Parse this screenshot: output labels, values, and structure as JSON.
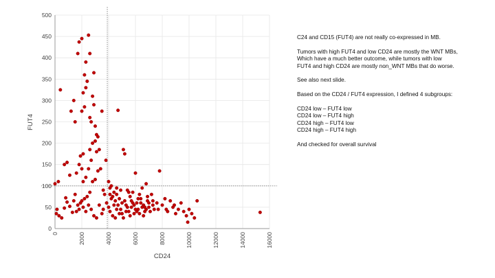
{
  "colors": {
    "point": "#c00000",
    "point_stroke": "#8a0000",
    "reference_line": "#808080",
    "grid": "#e6e6e6",
    "axis": "#9a9a9a"
  },
  "notes": {
    "para1": "C24 and CD15 (FUT4) are not really co-expressed in MB.",
    "para2": [
      "Tumors with high FUT4 and low CD24 are mostly the WNT MBs,",
      "Which have a much better outcome, while tumors with low",
      "FUT4 and high CD24 are mostly non_WNT MBs that do worse."
    ],
    "para3": "See also next slide.",
    "para4": "Based on the CD24 / FUT4 expression, I defined 4 subgroups:",
    "subgroups": [
      "CD24 low – FUT4 low",
      "CD24 low – FUT4 high",
      "CD24 high – FUT4 low",
      "CD24 high – FUT4 high"
    ],
    "para5": "And checked for overall survival"
  },
  "chart_data": {
    "type": "scatter",
    "title": "",
    "xlabel": "CD24",
    "ylabel": "FUT4",
    "xlim": [
      0,
      16000
    ],
    "ylim": [
      0,
      500
    ],
    "x_ticks": [
      "0",
      "2000",
      "4000",
      "6000",
      "8000",
      "10000",
      "12000",
      "14000",
      "16000"
    ],
    "y_ticks": [
      "0",
      "50",
      "100",
      "150",
      "200",
      "250",
      "300",
      "350",
      "400",
      "450",
      "500"
    ],
    "grid": true,
    "reference_lines": {
      "x": 3900,
      "y": 100
    },
    "series": [
      {
        "points": [
          [
            0,
            105
          ],
          [
            250,
            110
          ],
          [
            400,
            325
          ],
          [
            150,
            45
          ],
          [
            300,
            30
          ],
          [
            500,
            25
          ],
          [
            100,
            35
          ],
          [
            700,
            150
          ],
          [
            900,
            155
          ],
          [
            1100,
            125
          ],
          [
            1200,
            275
          ],
          [
            1400,
            300
          ],
          [
            1500,
            250
          ],
          [
            1700,
            410
          ],
          [
            1800,
            437
          ],
          [
            2000,
            445
          ],
          [
            2000,
            140
          ],
          [
            2100,
            175
          ],
          [
            2200,
            360
          ],
          [
            2300,
            390
          ],
          [
            2500,
            453
          ],
          [
            2600,
            410
          ],
          [
            2300,
            330
          ],
          [
            2100,
            318
          ],
          [
            2000,
            275
          ],
          [
            2200,
            285
          ],
          [
            1900,
            170
          ],
          [
            1800,
            150
          ],
          [
            1600,
            130
          ],
          [
            1500,
            80
          ],
          [
            1400,
            65
          ],
          [
            1700,
            55
          ],
          [
            1900,
            60
          ],
          [
            2100,
            110
          ],
          [
            2300,
            120
          ],
          [
            2500,
            140
          ],
          [
            2700,
            160
          ],
          [
            2600,
            185
          ],
          [
            2800,
            200
          ],
          [
            3000,
            205
          ],
          [
            3200,
            215
          ],
          [
            3100,
            220
          ],
          [
            2900,
            365
          ],
          [
            2800,
            310
          ],
          [
            2400,
            345
          ],
          [
            2600,
            260
          ],
          [
            2700,
            250
          ],
          [
            2900,
            290
          ],
          [
            3000,
            240
          ],
          [
            3100,
            180
          ],
          [
            3300,
            185
          ],
          [
            3500,
            275
          ],
          [
            3400,
            140
          ],
          [
            3200,
            135
          ],
          [
            3000,
            115
          ],
          [
            2800,
            110
          ],
          [
            2600,
            85
          ],
          [
            2400,
            75
          ],
          [
            2200,
            70
          ],
          [
            2000,
            65
          ],
          [
            1800,
            45
          ],
          [
            1600,
            40
          ],
          [
            1300,
            38
          ],
          [
            1100,
            52
          ],
          [
            900,
            62
          ],
          [
            800,
            72
          ],
          [
            700,
            48
          ],
          [
            3600,
            90
          ],
          [
            3700,
            80
          ],
          [
            3800,
            160
          ],
          [
            3850,
            60
          ],
          [
            3600,
            45
          ],
          [
            3500,
            35
          ],
          [
            3300,
            55
          ],
          [
            3100,
            25
          ],
          [
            2900,
            30
          ],
          [
            2700,
            45
          ],
          [
            2500,
            55
          ],
          [
            2300,
            40
          ],
          [
            2100,
            50
          ],
          [
            4000,
            110
          ],
          [
            4100,
            95
          ],
          [
            4200,
            100
          ],
          [
            4300,
            75
          ],
          [
            4400,
            85
          ],
          [
            4500,
            65
          ],
          [
            4600,
            95
          ],
          [
            4700,
            55
          ],
          [
            4800,
            70
          ],
          [
            4900,
            45
          ],
          [
            5000,
            60
          ],
          [
            5100,
            185
          ],
          [
            5200,
            175
          ],
          [
            5300,
            55
          ],
          [
            5400,
            90
          ],
          [
            5500,
            40
          ],
          [
            5600,
            75
          ],
          [
            5700,
            50
          ],
          [
            5800,
            85
          ],
          [
            5900,
            35
          ],
          [
            6000,
            130
          ],
          [
            6100,
            60
          ],
          [
            6200,
            45
          ],
          [
            6300,
            80
          ],
          [
            6400,
            70
          ],
          [
            6500,
            95
          ],
          [
            6600,
            55
          ],
          [
            6700,
            40
          ],
          [
            6800,
            105
          ],
          [
            6900,
            65
          ],
          [
            7000,
            50
          ],
          [
            7200,
            80
          ],
          [
            7400,
            45
          ],
          [
            7600,
            60
          ],
          [
            7800,
            135
          ],
          [
            8000,
            55
          ],
          [
            8200,
            70
          ],
          [
            8400,
            40
          ],
          [
            8600,
            65
          ],
          [
            8800,
            50
          ],
          [
            9000,
            35
          ],
          [
            9200,
            45
          ],
          [
            9400,
            60
          ],
          [
            9600,
            40
          ],
          [
            9800,
            30
          ],
          [
            10000,
            45
          ],
          [
            10200,
            35
          ],
          [
            10400,
            25
          ],
          [
            10600,
            65
          ],
          [
            9900,
            15
          ],
          [
            4700,
            277
          ],
          [
            4100,
            40
          ],
          [
            4300,
            30
          ],
          [
            4500,
            25
          ],
          [
            4800,
            35
          ],
          [
            5100,
            25
          ],
          [
            5300,
            40
          ],
          [
            5600,
            30
          ],
          [
            5900,
            55
          ],
          [
            6100,
            40
          ],
          [
            6300,
            35
          ],
          [
            6600,
            30
          ],
          [
            6800,
            45
          ],
          [
            7100,
            40
          ],
          [
            7300,
            55
          ],
          [
            7700,
            45
          ],
          [
            8300,
            45
          ],
          [
            8900,
            55
          ],
          [
            4200,
            70
          ],
          [
            4400,
            55
          ],
          [
            4600,
            80
          ],
          [
            4900,
            90
          ],
          [
            5200,
            65
          ],
          [
            5500,
            85
          ],
          [
            5800,
            60
          ],
          [
            6200,
            70
          ],
          [
            6500,
            50
          ],
          [
            6900,
            75
          ],
          [
            7300,
            65
          ],
          [
            4000,
            50
          ],
          [
            4100,
            80
          ],
          [
            4600,
            45
          ],
          [
            5000,
            35
          ],
          [
            5400,
            50
          ],
          [
            5700,
            65
          ],
          [
            6000,
            45
          ],
          [
            6400,
            60
          ],
          [
            6700,
            50
          ],
          [
            7000,
            60
          ],
          [
            15300,
            38
          ]
        ]
      }
    ]
  }
}
